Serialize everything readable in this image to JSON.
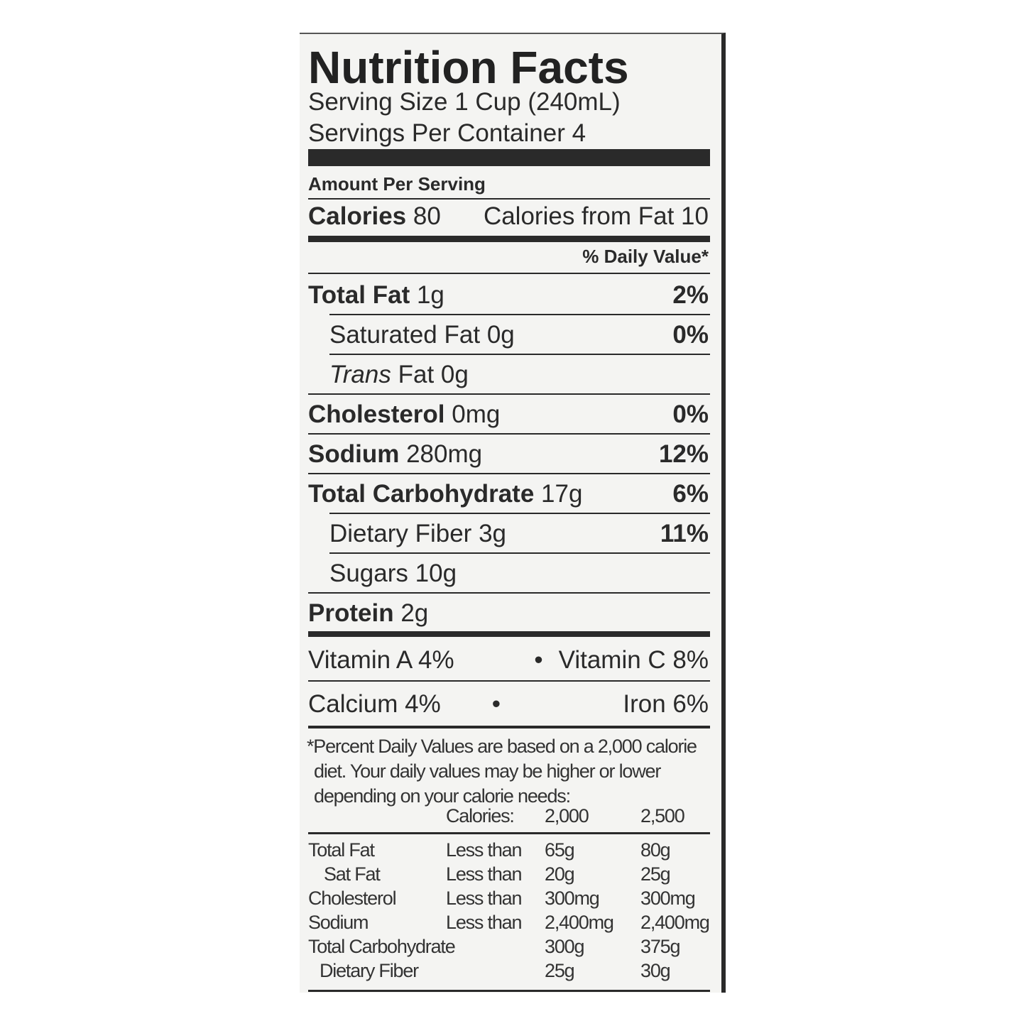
{
  "title": "Nutrition Facts",
  "serving_size": "Serving Size 1 Cup (240mL)",
  "servings_per_container": "Servings Per Container 4",
  "amount_per_serving": "Amount Per Serving",
  "calories": {
    "label": "Calories",
    "value": "80",
    "from_fat": "Calories from Fat 10"
  },
  "daily_value_header": "% Daily Value*",
  "nutrients": [
    {
      "name": "Total Fat",
      "amount": "1g",
      "dv": "2%"
    },
    {
      "name": "Saturated Fat",
      "amount": "0g",
      "dv": "0%"
    },
    {
      "name": "Trans",
      "name_rest": "Fat",
      "amount": "0g",
      "dv": ""
    },
    {
      "name": "Cholesterol",
      "amount": "0mg",
      "dv": "0%"
    },
    {
      "name": "Sodium",
      "amount": "280mg",
      "dv": "12%"
    },
    {
      "name": "Total Carbohydrate",
      "amount": "17g",
      "dv": "6%"
    },
    {
      "name": "Dietary Fiber",
      "amount": "3g",
      "dv": "11%"
    },
    {
      "name": "Sugars",
      "amount": "10g",
      "dv": ""
    },
    {
      "name": "Protein",
      "amount": "2g",
      "dv": ""
    }
  ],
  "vitamins": [
    {
      "left": "Vitamin A 4%",
      "bullet": "•",
      "right": "Vitamin C 8%"
    },
    {
      "left": "Calcium 4%",
      "bullet": "•",
      "right": "Iron 6%"
    }
  ],
  "footnote": [
    "*Percent Daily Values are based on a 2,000 calorie",
    "diet. Your daily values may be higher or lower",
    "depending on your calorie needs:"
  ],
  "dv_table": {
    "header": [
      "",
      "Calories:",
      "2,000",
      "2,500"
    ],
    "rows": [
      [
        "Total Fat",
        "Less than",
        "65g",
        "80g"
      ],
      [
        "Sat Fat",
        "Less than",
        "20g",
        "25g"
      ],
      [
        "Cholesterol",
        "Less than",
        "300mg",
        "300mg"
      ],
      [
        "Sodium",
        "Less than",
        "2,400mg",
        "2,400mg"
      ],
      [
        "Total Carbohydrate",
        "",
        "300g",
        "375g"
      ],
      [
        "Dietary Fiber",
        "",
        "25g",
        "30g"
      ]
    ]
  }
}
